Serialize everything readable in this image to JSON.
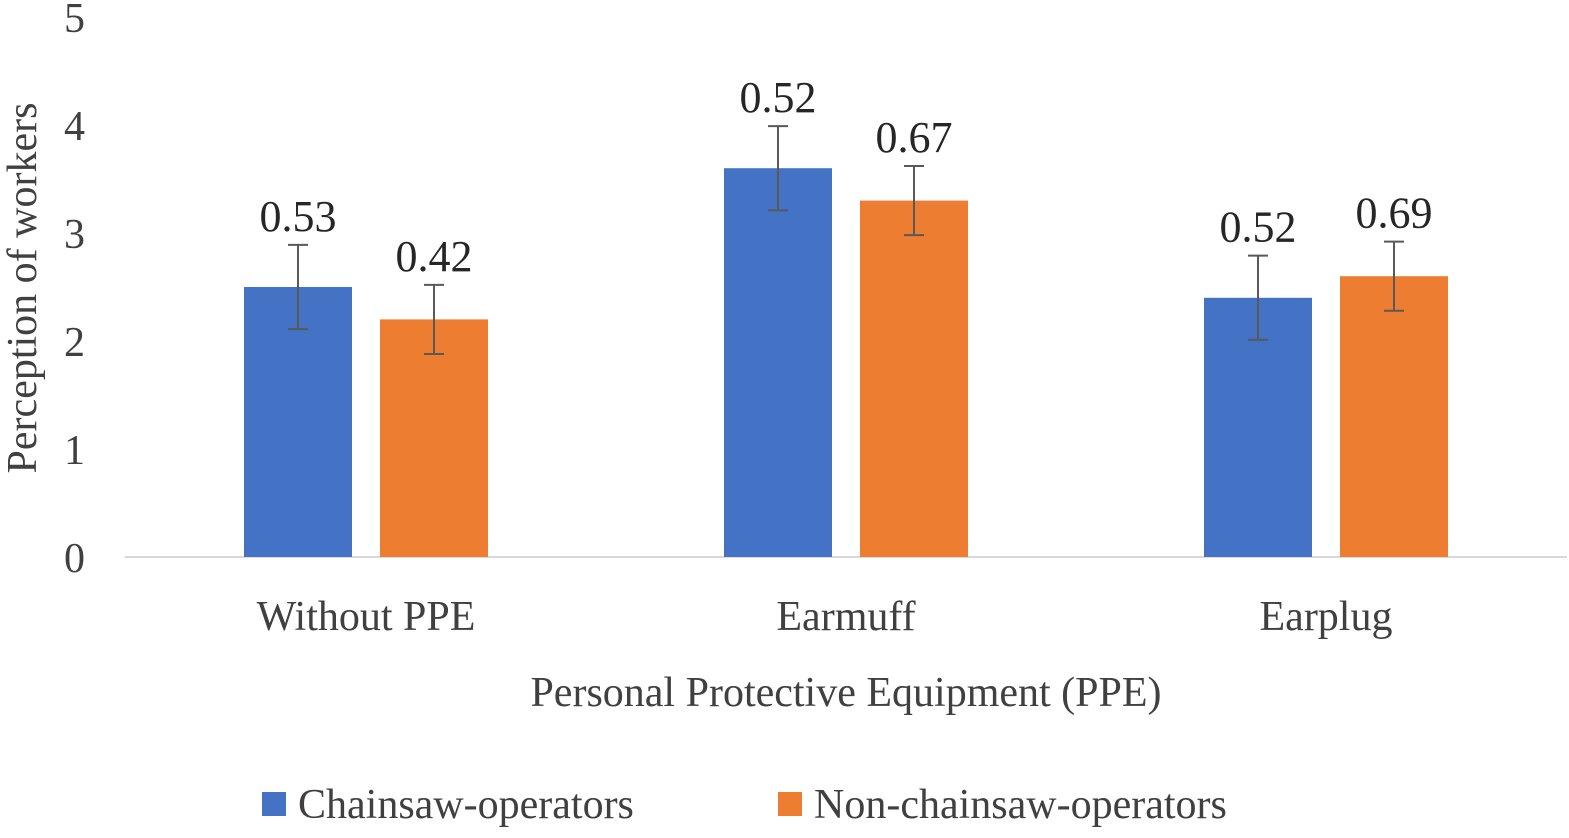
{
  "chart_data": {
    "type": "bar",
    "title": "",
    "xlabel": "Personal Protective Equipment (PPE)",
    "ylabel": "Perception of workers",
    "ylim": [
      0,
      5
    ],
    "yticks": [
      "0",
      "1",
      "2",
      "3",
      "4",
      "5"
    ],
    "categories": [
      "Without PPE",
      "Earmuff",
      "Earplug"
    ],
    "series": [
      {
        "name": "Chainsaw-operators",
        "color": "#4472C4",
        "values": [
          2.5,
          3.6,
          2.4
        ],
        "error": [
          0.39,
          0.39,
          0.39
        ],
        "labels": [
          "0.53",
          "0.52",
          "0.52"
        ]
      },
      {
        "name": "Non-chainsaw-operators",
        "color": "#ED7D31",
        "values": [
          2.2,
          3.3,
          2.6
        ],
        "error": [
          0.32,
          0.32,
          0.32
        ],
        "labels": [
          "0.42",
          "0.67",
          "0.69"
        ]
      }
    ],
    "legend_position": "bottom",
    "grid": false
  }
}
